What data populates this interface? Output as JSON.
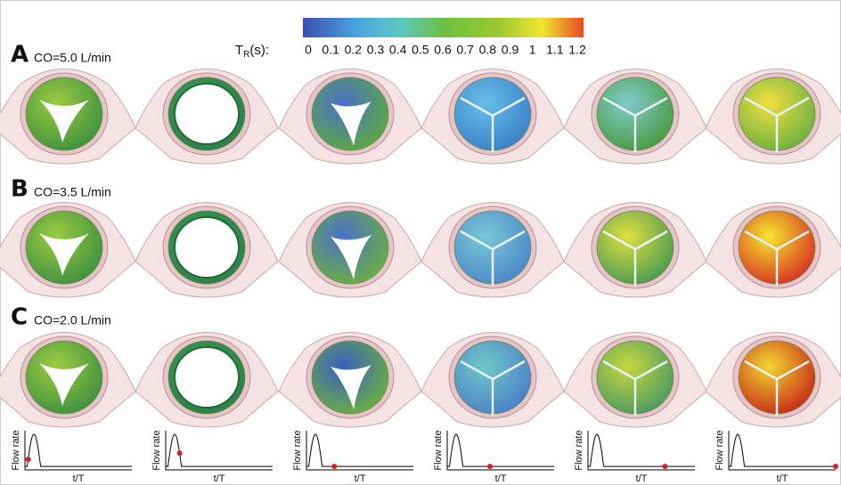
{
  "colorbar": {
    "label_main": "T",
    "label_sub": "R",
    "label_suffix": "(s):",
    "ticks": [
      0,
      0.1,
      0.2,
      0.3,
      0.4,
      0.5,
      0.6,
      0.7,
      0.8,
      0.9,
      1,
      1.1,
      1.2
    ]
  },
  "panels": [
    {
      "letter": "A",
      "label": "CO=5.0 L/min"
    },
    {
      "letter": "B",
      "label": "CO=3.5 L/min"
    },
    {
      "letter": "C",
      "label": "CO=2.0 L/min"
    }
  ],
  "flow_plots": [
    {
      "y_label": "Flow rate",
      "x_label": "t/T"
    },
    {
      "y_label": "Flow rate",
      "x_label": "t/T"
    },
    {
      "y_label": "Flow rate",
      "x_label": "t/T"
    },
    {
      "y_label": "Flow rate",
      "x_label": "t/T"
    },
    {
      "y_label": "Flow rate",
      "x_label": "t/T"
    },
    {
      "y_label": "Flow rate",
      "x_label": "t/T"
    }
  ]
}
